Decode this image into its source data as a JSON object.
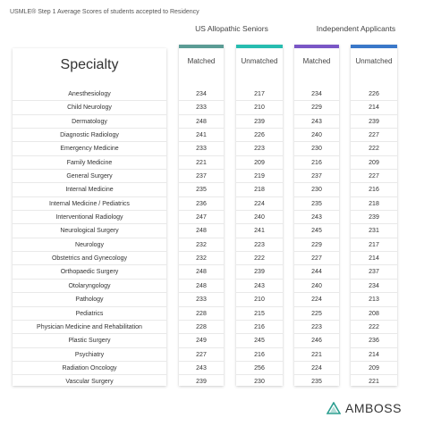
{
  "caption": "USMLE® Step 1 Average Scores of students accepted to Residency",
  "groups": {
    "us": "US Allopathic Seniors",
    "independent": "Independent Applicants"
  },
  "headers": {
    "specialty": "Specialty",
    "us_matched": "Matched",
    "us_unmatched": "Unmatched",
    "ind_matched": "Matched",
    "ind_unmatched": "Unmatched"
  },
  "colors": {
    "us_matched": "#5b9c95",
    "us_unmatched": "#27bdb0",
    "ind_matched": "#7a57c6",
    "ind_unmatched": "#3a78c9"
  },
  "brand": "AMBOSS",
  "chart_data": {
    "type": "table",
    "title": "USMLE® Step 1 Average Scores of students accepted to Residency",
    "columns": [
      "Specialty",
      "US Allopathic Seniors Matched",
      "US Allopathic Seniors Unmatched",
      "Independent Applicants Matched",
      "Independent Applicants Unmatched"
    ],
    "rows": [
      {
        "specialty": "Anesthesiology",
        "values": [
          "234",
          "217",
          "234",
          "226"
        ]
      },
      {
        "specialty": "Child Neurology",
        "values": [
          "233",
          "210",
          "229",
          "214"
        ]
      },
      {
        "specialty": "Dermatology",
        "values": [
          "248",
          "239",
          "243",
          "239"
        ]
      },
      {
        "specialty": "Diagnostic Radiology",
        "values": [
          "241",
          "226",
          "240",
          "227"
        ]
      },
      {
        "specialty": "Emergency Medicine",
        "values": [
          "233",
          "223",
          "230",
          "222"
        ]
      },
      {
        "specialty": "Family Medicine",
        "values": [
          "221",
          "209",
          "216",
          "209"
        ]
      },
      {
        "specialty": "General Surgery",
        "values": [
          "237",
          "219",
          "237",
          "227"
        ]
      },
      {
        "specialty": "Internal Medicine",
        "values": [
          "235",
          "218",
          "230",
          "216"
        ]
      },
      {
        "specialty": "Internal Medicine / Pediatrics",
        "values": [
          "236",
          "224",
          "235",
          "218"
        ]
      },
      {
        "specialty": "Interventional Radiology",
        "values": [
          "247",
          "240",
          "243",
          "239"
        ]
      },
      {
        "specialty": "Neurological Surgery",
        "values": [
          "248",
          "241",
          "245",
          "231"
        ]
      },
      {
        "specialty": "Neurology",
        "values": [
          "232",
          "223",
          "229",
          "217"
        ]
      },
      {
        "specialty": "Obstetrics and Gynecology",
        "values": [
          "232",
          "222",
          "227",
          "214"
        ]
      },
      {
        "specialty": "Orthopaedic Surgery",
        "values": [
          "248",
          "239",
          "244",
          "237"
        ]
      },
      {
        "specialty": "Otolaryngology",
        "values": [
          "248",
          "243",
          "240",
          "234"
        ]
      },
      {
        "specialty": "Pathology",
        "values": [
          "233",
          "210",
          "224",
          "213"
        ]
      },
      {
        "specialty": "Pediatrics",
        "values": [
          "228",
          "215",
          "225",
          "208"
        ]
      },
      {
        "specialty": "Physician Medicine and Rehabilitation",
        "values": [
          "228",
          "216",
          "223",
          "222"
        ]
      },
      {
        "specialty": "Plastic Surgery",
        "values": [
          "249",
          "245",
          "246",
          "236"
        ]
      },
      {
        "specialty": "Psychiatry",
        "values": [
          "227",
          "216",
          "221",
          "214"
        ]
      },
      {
        "specialty": "Radiation Oncology",
        "values": [
          "243",
          "256",
          "224",
          "209"
        ]
      },
      {
        "specialty": "Vascular Surgery",
        "values": [
          "239",
          "230",
          "235",
          "221"
        ]
      }
    ]
  }
}
